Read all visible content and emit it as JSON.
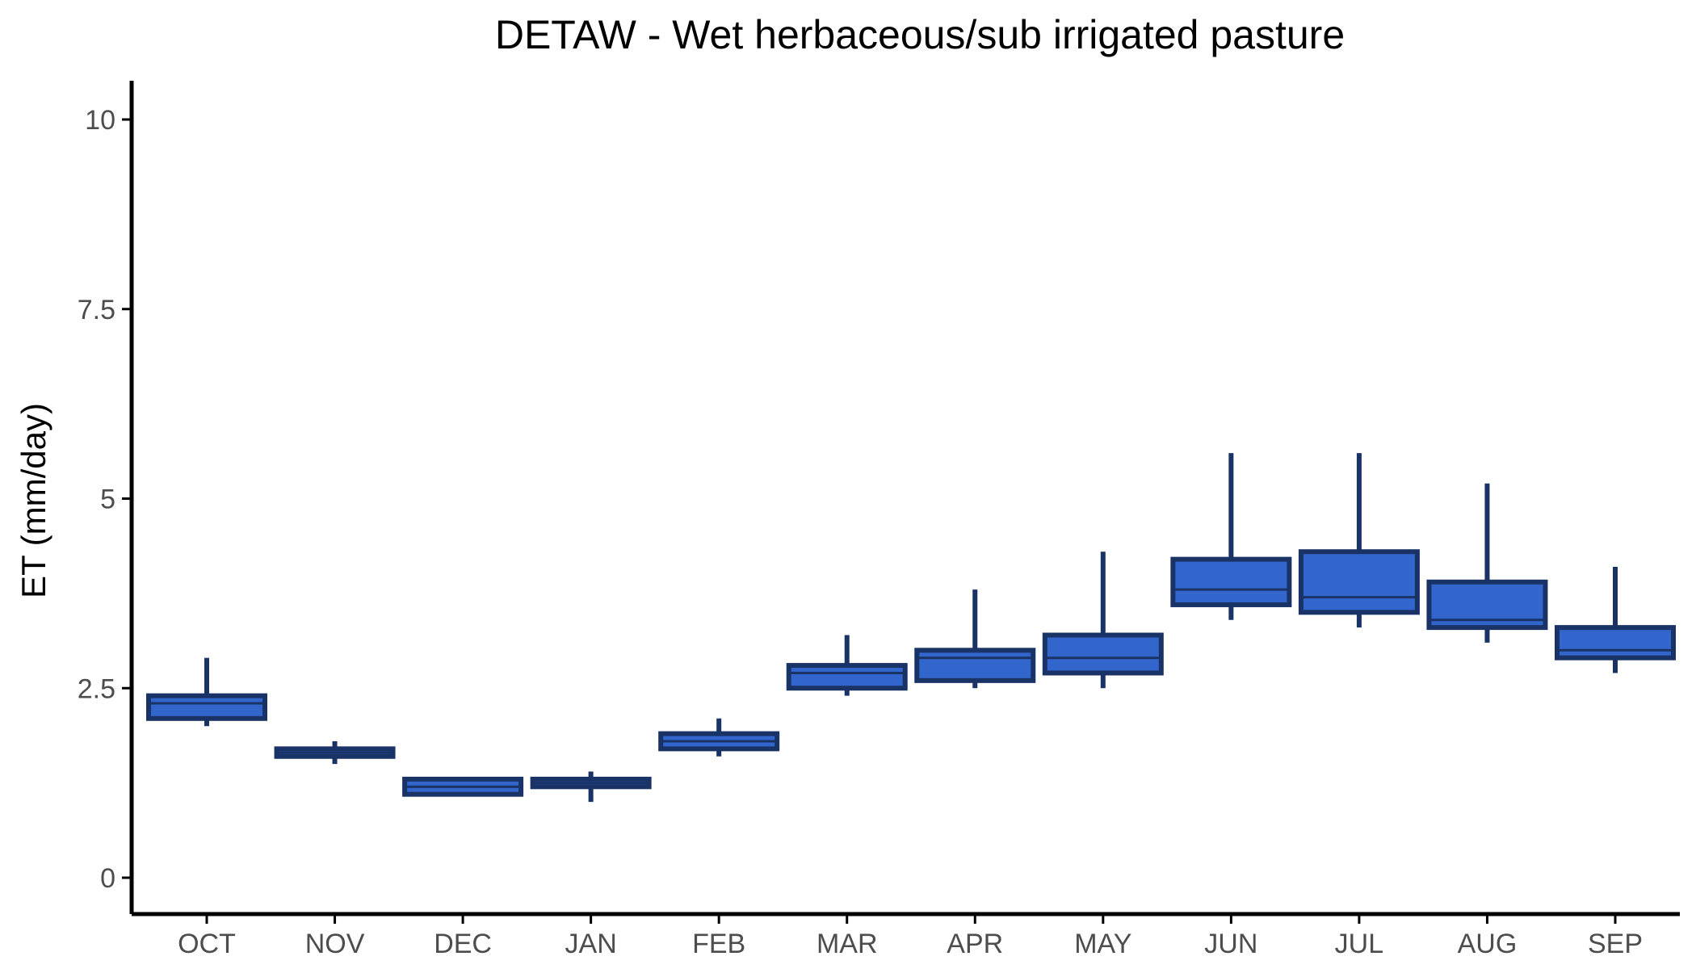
{
  "chart_data": {
    "type": "boxplot",
    "title": "DETAW - Wet herbaceous/sub irrigated pasture",
    "xlabel": "",
    "ylabel": "ET (mm/day)",
    "ylim": [
      -0.5,
      10.5
    ],
    "yticks": [
      0,
      2.5,
      5,
      7.5,
      10
    ],
    "ytick_labels": [
      "0",
      "2.5",
      "5",
      "7.5",
      "10"
    ],
    "grid": false,
    "legend": "none",
    "colors": {
      "box_fill": "#3366cc",
      "box_line": "#1a3366",
      "axis": "#000000",
      "tick_text": "#4d4d4d"
    },
    "categories": [
      "OCT",
      "NOV",
      "DEC",
      "JAN",
      "FEB",
      "MAR",
      "APR",
      "MAY",
      "JUN",
      "JUL",
      "AUG",
      "SEP"
    ],
    "boxes": [
      {
        "label": "OCT",
        "min": 2.0,
        "q1": 2.1,
        "median": 2.3,
        "q3": 2.4,
        "max": 2.9
      },
      {
        "label": "NOV",
        "min": 1.5,
        "q1": 1.6,
        "median": 1.65,
        "q3": 1.7,
        "max": 1.8
      },
      {
        "label": "DEC",
        "min": 1.1,
        "q1": 1.1,
        "median": 1.2,
        "q3": 1.3,
        "max": 1.3
      },
      {
        "label": "JAN",
        "min": 1.0,
        "q1": 1.2,
        "median": 1.25,
        "q3": 1.3,
        "max": 1.4
      },
      {
        "label": "FEB",
        "min": 1.6,
        "q1": 1.7,
        "median": 1.8,
        "q3": 1.9,
        "max": 2.1
      },
      {
        "label": "MAR",
        "min": 2.4,
        "q1": 2.5,
        "median": 2.7,
        "q3": 2.8,
        "max": 3.2
      },
      {
        "label": "APR",
        "min": 2.5,
        "q1": 2.6,
        "median": 2.9,
        "q3": 3.0,
        "max": 3.8
      },
      {
        "label": "MAY",
        "min": 2.5,
        "q1": 2.7,
        "median": 2.9,
        "q3": 3.2,
        "max": 4.3
      },
      {
        "label": "JUN",
        "min": 3.4,
        "q1": 3.6,
        "median": 3.8,
        "q3": 4.2,
        "max": 5.6
      },
      {
        "label": "JUL",
        "min": 3.3,
        "q1": 3.5,
        "median": 3.7,
        "q3": 4.3,
        "max": 5.6
      },
      {
        "label": "AUG",
        "min": 3.1,
        "q1": 3.3,
        "median": 3.4,
        "q3": 3.9,
        "max": 5.2
      },
      {
        "label": "SEP",
        "min": 2.7,
        "q1": 2.9,
        "median": 3.0,
        "q3": 3.3,
        "max": 4.1
      }
    ]
  }
}
